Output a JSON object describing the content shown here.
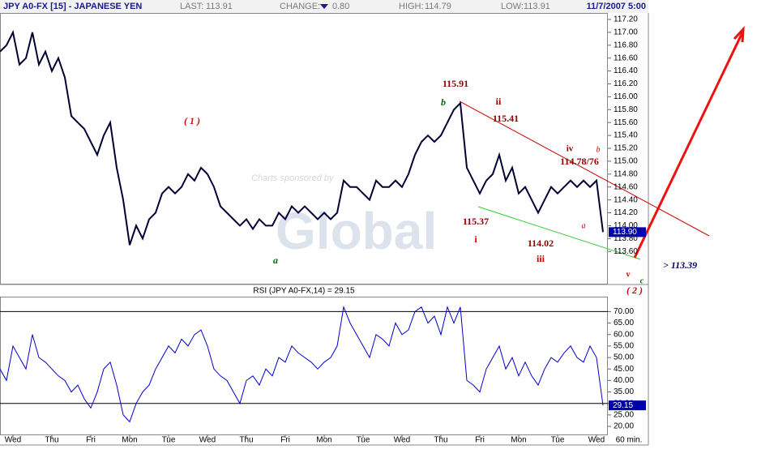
{
  "header": {
    "symbol": "JPY A0-FX [15] - JAPANESE YEN",
    "last_label": "LAST:",
    "last": "113.91",
    "change_label": "CHANGE:",
    "change": "0.80",
    "high_label": "HIGH:",
    "high": "114.79",
    "low_label": "LOW:",
    "low": "113.91",
    "datetime": "11/7/2007 5:00"
  },
  "sponsor": "Charts sponsored by",
  "watermark": "Global",
  "annotations": [
    "( 1 )",
    "115.91",
    "b",
    "ii",
    "115.41",
    "iv",
    "b",
    "114.78/76",
    "115.37",
    "i",
    "a",
    "114.02",
    "iii",
    "a",
    "c",
    "v",
    "( 2 )",
    "> 113.39"
  ],
  "chart_data": [
    {
      "type": "line",
      "color": "#000033",
      "values": [
        116.7,
        116.8,
        117.0,
        116.5,
        116.6,
        117.0,
        116.5,
        116.7,
        116.4,
        116.6,
        116.3,
        115.7,
        115.6,
        115.5,
        115.3,
        115.1,
        115.4,
        115.6,
        114.9,
        114.4,
        113.7,
        114.0,
        113.8,
        114.1,
        114.2,
        114.5,
        114.6,
        114.5,
        114.6,
        114.8,
        114.7,
        114.9,
        114.8,
        114.6,
        114.3,
        114.2,
        114.1,
        114.0,
        114.1,
        113.95,
        114.1,
        114.0,
        114.0,
        114.2,
        114.1,
        114.3,
        114.2,
        114.3,
        114.2,
        114.1,
        114.2,
        114.1,
        114.2,
        114.7,
        114.6,
        114.6,
        114.5,
        114.4,
        114.7,
        114.6,
        114.6,
        114.7,
        114.6,
        114.8,
        115.1,
        115.3,
        115.4,
        115.3,
        115.4,
        115.6,
        115.8,
        115.9,
        114.9,
        114.7,
        114.5,
        114.7,
        114.8,
        115.1,
        114.7,
        114.9,
        114.5,
        114.6,
        114.4,
        114.2,
        114.4,
        114.6,
        114.5,
        114.6,
        114.7,
        114.6,
        114.7,
        114.6,
        114.7,
        113.9
      ],
      "last_price": {
        "value": 113.9,
        "label": "113.90"
      },
      "ylim": [
        113.1,
        117.3
      ],
      "yticks": [
        {
          "value": 113.6,
          "label": "113.60"
        },
        {
          "value": 113.8,
          "label": "113.80"
        },
        {
          "value": 114,
          "label": "114.00"
        },
        {
          "value": 114.2,
          "label": "114.20"
        },
        {
          "value": 114.4,
          "label": "114.40"
        },
        {
          "value": 114.6,
          "label": "114.60"
        },
        {
          "value": 114.8,
          "label": "114.80"
        },
        {
          "value": 115,
          "label": "115.00"
        },
        {
          "value": 115.2,
          "label": "115.20"
        },
        {
          "value": 115.4,
          "label": "115.40"
        },
        {
          "value": 115.6,
          "label": "115.60"
        },
        {
          "value": 115.8,
          "label": "115.80"
        },
        {
          "value": 116,
          "label": "116.00"
        },
        {
          "value": 116.2,
          "label": "116.20"
        },
        {
          "value": 116.4,
          "label": "116.40"
        },
        {
          "value": 116.6,
          "label": "116.60"
        },
        {
          "value": 116.8,
          "label": "116.80"
        },
        {
          "value": 117,
          "label": "117.00"
        },
        {
          "value": 117.2,
          "label": "117.20"
        }
      ]
    },
    {
      "type": "line",
      "title": "RSI (JPY A0-FX,14) = 29.15",
      "color": "#0000cc",
      "categories": [
        null,
        null,
        "Wed",
        null,
        null,
        null,
        null,
        null,
        "Thu",
        null,
        null,
        null,
        null,
        null,
        "Fri",
        null,
        null,
        null,
        null,
        null,
        "Mon",
        null,
        null,
        null,
        null,
        null,
        "Tue",
        null,
        null,
        null,
        null,
        null,
        "Wed",
        null,
        null,
        null,
        null,
        null,
        "Thu",
        null,
        null,
        null,
        null,
        null,
        "Fri",
        null,
        null,
        null,
        null,
        null,
        "Mon",
        null,
        null,
        null,
        null,
        null,
        "Tue",
        null,
        null,
        null,
        null,
        null,
        "Wed",
        null,
        null,
        null,
        null,
        null,
        "Thu",
        null,
        null,
        null,
        null,
        null,
        "Fri",
        null,
        null,
        null,
        null,
        null,
        "Mon",
        null,
        null,
        null,
        null,
        null,
        "Tue",
        null,
        null,
        null,
        null,
        null,
        "Wed",
        null
      ],
      "x_unit": "60 min.",
      "values": [
        45,
        40,
        55,
        50,
        45,
        60,
        50,
        48,
        45,
        42,
        40,
        35,
        38,
        32,
        28,
        35,
        45,
        48,
        38,
        25,
        22,
        30,
        35,
        38,
        45,
        50,
        55,
        52,
        58,
        55,
        60,
        62,
        55,
        45,
        42,
        40,
        35,
        30,
        40,
        42,
        38,
        45,
        42,
        50,
        48,
        55,
        52,
        50,
        48,
        45,
        48,
        50,
        55,
        72,
        65,
        60,
        55,
        50,
        60,
        58,
        55,
        65,
        60,
        62,
        70,
        72,
        65,
        68,
        60,
        72,
        65,
        72,
        40,
        38,
        35,
        45,
        50,
        55,
        45,
        50,
        42,
        48,
        42,
        38,
        45,
        50,
        48,
        52,
        55,
        50,
        48,
        55,
        50,
        29.15
      ],
      "levels": [
        70,
        30
      ],
      "ylim": [
        16.5,
        76.5
      ],
      "yticks": [
        {
          "value": 20,
          "label": "20.00"
        },
        {
          "value": 25,
          "label": "25.00"
        },
        {
          "value": 30,
          "label": "30.00"
        },
        {
          "value": 35,
          "label": "35.00"
        },
        {
          "value": 40,
          "label": "40.00"
        },
        {
          "value": 45,
          "label": "45.00"
        },
        {
          "value": 50,
          "label": "50.00"
        },
        {
          "value": 55,
          "label": "55.00"
        },
        {
          "value": 60,
          "label": "60.00"
        },
        {
          "value": 65,
          "label": "65.00"
        },
        {
          "value": 70,
          "label": "70.00"
        }
      ]
    }
  ]
}
